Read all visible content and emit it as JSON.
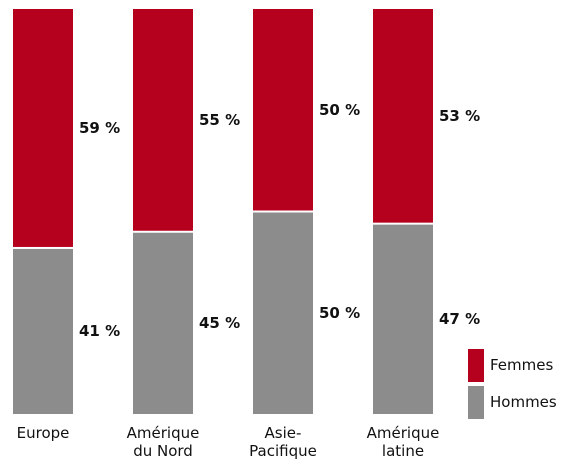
{
  "chart_data": {
    "type": "stacked-bar",
    "categories": [
      "Europe",
      "Amérique du Nord",
      "Asie-Pacifique",
      "Amérique latine"
    ],
    "series": [
      {
        "name": "Hommes",
        "color": "#8c8c8c",
        "values": [
          41,
          45,
          50,
          47
        ],
        "value_labels": [
          "41 %",
          "45 %",
          "50 %",
          "47 %"
        ]
      },
      {
        "name": "Femmes",
        "color": "#b5001e",
        "values": [
          59,
          55,
          50,
          53
        ],
        "value_labels": [
          "59 %",
          "55 %",
          "50 %",
          "53 %"
        ]
      }
    ],
    "ylim": [
      0,
      100
    ],
    "legend": "lower right"
  }
}
